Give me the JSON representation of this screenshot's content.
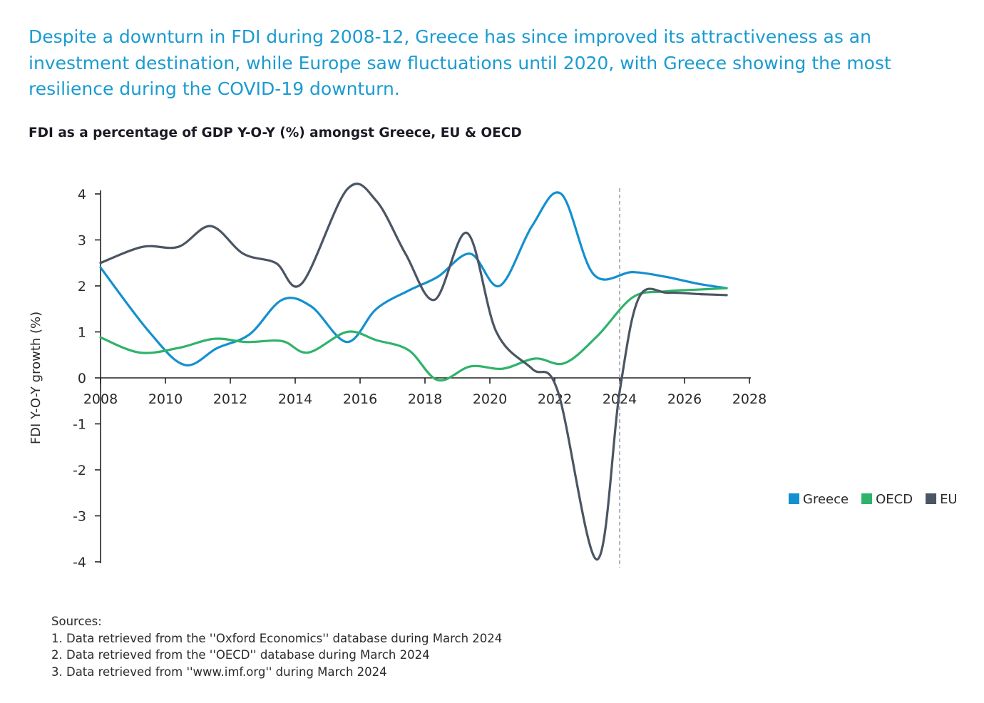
{
  "headline": "Despite a downturn in FDI during 2008-12, Greece has since improved its attractiveness as an investment destination, while Europe saw fluctuations until 2020, with Greece showing the most resilience during the COVID-19 downturn.",
  "colors": {
    "headline": "#1a9bd1",
    "Greece": "#1490cf",
    "OECD": "#2fb36a",
    "EU": "#4b5563",
    "axis": "#222222",
    "forecast_line": "#9aa3ad"
  },
  "sources": {
    "heading": "Sources:",
    "items": [
      "1. Data retrieved from the ''Oxford Economics'' database during March 2024",
      "2. Data retrieved from the ''OECD''  database during March 2024",
      "3. Data retrieved from ''www.imf.org'' during March 2024"
    ]
  },
  "chart_data": {
    "type": "line",
    "title": "FDI as a percentage of GDP Y-O-Y (%) amongst Greece, EU & OECD",
    "xlabel": "",
    "ylabel": "FDI Y-O-Y growth (%)",
    "xlim": [
      2008,
      2028
    ],
    "ylim": [
      -4,
      4
    ],
    "xticks": [
      2008,
      2010,
      2012,
      2014,
      2016,
      2018,
      2020,
      2022,
      2024,
      2026,
      2028
    ],
    "yticks": [
      4,
      3,
      2,
      1,
      0,
      -1,
      -2,
      -3,
      -4
    ],
    "grid": false,
    "legend_position": "right",
    "forecast_divider_x": 2024,
    "series": [
      {
        "name": "Greece",
        "color": "#1490cf",
        "x": [
          2008,
          2009.5,
          2010.6,
          2011.6,
          2012.6,
          2013.6,
          2014.5,
          2015.6,
          2016.5,
          2017.5,
          2018.4,
          2019.4,
          2020.3,
          2021.3,
          2022.2,
          2023.2,
          2024.4,
          2025.4,
          2026.4,
          2027.3
        ],
        "values": [
          2.4,
          1.0,
          0.28,
          0.65,
          0.95,
          1.7,
          1.55,
          0.78,
          1.5,
          1.9,
          2.2,
          2.7,
          2.0,
          3.3,
          4.0,
          2.25,
          2.3,
          2.2,
          2.05,
          1.95
        ]
      },
      {
        "name": "OECD",
        "color": "#2fb36a",
        "x": [
          2008,
          2009.2,
          2010.4,
          2011.5,
          2012.5,
          2013.6,
          2014.4,
          2015.6,
          2016.5,
          2017.5,
          2018.4,
          2019.4,
          2020.4,
          2021.4,
          2022.3,
          2023.3,
          2024.4,
          2025.4,
          2026.4,
          2027.3
        ],
        "values": [
          0.88,
          0.55,
          0.65,
          0.85,
          0.78,
          0.8,
          0.55,
          1.0,
          0.82,
          0.6,
          -0.05,
          0.25,
          0.2,
          0.42,
          0.32,
          0.9,
          1.75,
          1.88,
          1.92,
          1.95
        ]
      },
      {
        "name": "EU",
        "color": "#4b5563",
        "x": [
          2008,
          2009.3,
          2010.4,
          2011.4,
          2012.4,
          2013.4,
          2014.2,
          2015.6,
          2016.5,
          2017.4,
          2018.3,
          2019.3,
          2020.2,
          2021.3,
          2022.1,
          2023.3,
          2024.0,
          2024.6,
          2025.5,
          2026.5,
          2027.3
        ],
        "values": [
          2.5,
          2.85,
          2.85,
          3.3,
          2.7,
          2.5,
          2.05,
          4.1,
          3.85,
          2.7,
          1.7,
          3.15,
          1.0,
          0.2,
          -0.3,
          -3.95,
          -0.3,
          1.75,
          1.85,
          1.82,
          1.8
        ]
      }
    ]
  }
}
